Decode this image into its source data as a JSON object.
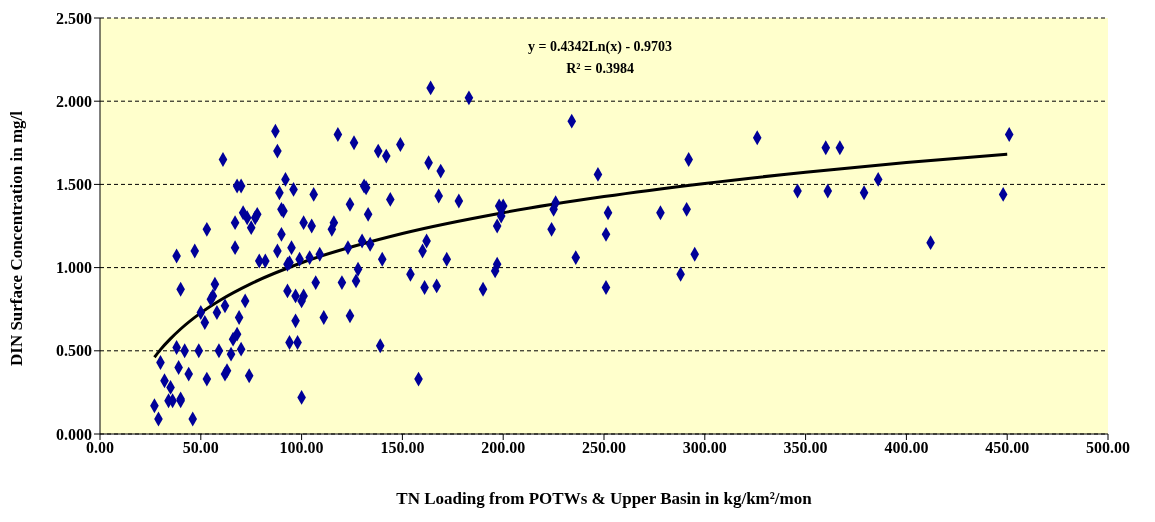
{
  "chart_data": {
    "type": "scatter",
    "xlabel": "TN Loading from POTWs & Upper Basin in kg/km²/mon",
    "ylabel": "DIN Surface Concentration in mg/l",
    "annotations": [
      "y = 0.4342Ln(x) - 0.9703",
      "R² = 0.3984"
    ],
    "xlim": [
      0,
      500
    ],
    "xticks": [
      {
        "value": 0,
        "label": "0.00"
      },
      {
        "value": 50,
        "label": "50.00"
      },
      {
        "value": 100,
        "label": "100.00"
      },
      {
        "value": 150,
        "label": "150.00"
      },
      {
        "value": 200,
        "label": "200.00"
      },
      {
        "value": 250,
        "label": "250.00"
      },
      {
        "value": 300,
        "label": "300.00"
      },
      {
        "value": 350,
        "label": "350.00"
      },
      {
        "value": 400,
        "label": "400.00"
      },
      {
        "value": 450,
        "label": "450.00"
      },
      {
        "value": 500,
        "label": "500.00"
      }
    ],
    "ylim": [
      0,
      2.5
    ],
    "yticks": [
      {
        "value": 0,
        "label": "0.000"
      },
      {
        "value": 0.5,
        "label": "0.500"
      },
      {
        "value": 1,
        "label": "1.000"
      },
      {
        "value": 1.5,
        "label": "1.500"
      },
      {
        "value": 2,
        "label": "2.000"
      },
      {
        "value": 2.5,
        "label": "2.500"
      }
    ],
    "grid": "y",
    "series": [
      {
        "marker": "diamond",
        "color": "#000099",
        "x": [
          27,
          29,
          30,
          32,
          34,
          35,
          36,
          38,
          38,
          39,
          40,
          40,
          40,
          42,
          44,
          46,
          47,
          49,
          50,
          52,
          53,
          53,
          55,
          56,
          57,
          58,
          59,
          61,
          62,
          62,
          63,
          65,
          66,
          67,
          67,
          68,
          68,
          69,
          70,
          70,
          71,
          72,
          73,
          74,
          75,
          77,
          78,
          79,
          82,
          87,
          88,
          88,
          89,
          90,
          90,
          91,
          92,
          93,
          93,
          94,
          94,
          95,
          96,
          97,
          97,
          98,
          99,
          100,
          100,
          101,
          101,
          104,
          105,
          106,
          107,
          109,
          111,
          115,
          116,
          118,
          120,
          123,
          124,
          124,
          126,
          127,
          128,
          130,
          131,
          132,
          133,
          134,
          138,
          139,
          140,
          142,
          144,
          149,
          154,
          158,
          160,
          161,
          162,
          163,
          164,
          167,
          168,
          169,
          172,
          178,
          183,
          190,
          196,
          197,
          197,
          198,
          199,
          200,
          224,
          225,
          226,
          234,
          236,
          247,
          251,
          251,
          252,
          278,
          288,
          291,
          292,
          295,
          326,
          346,
          360,
          361,
          367,
          379,
          386,
          412,
          448,
          451
        ],
        "values": [
          0.17,
          0.09,
          0.43,
          0.32,
          0.2,
          0.28,
          0.2,
          1.07,
          0.52,
          0.4,
          0.2,
          0.21,
          0.87,
          0.5,
          0.36,
          0.09,
          1.1,
          0.5,
          0.73,
          0.67,
          1.23,
          0.33,
          0.81,
          0.83,
          0.9,
          0.73,
          0.5,
          1.65,
          0.77,
          0.36,
          0.38,
          0.48,
          0.57,
          1.27,
          1.12,
          1.49,
          0.6,
          0.7,
          1.49,
          0.51,
          1.33,
          0.8,
          1.3,
          0.35,
          1.24,
          1.3,
          1.32,
          1.04,
          1.04,
          1.82,
          1.7,
          1.1,
          1.45,
          1.35,
          1.2,
          1.34,
          1.53,
          1.02,
          0.86,
          1.03,
          0.55,
          1.12,
          1.47,
          0.68,
          0.83,
          0.55,
          1.05,
          0.22,
          0.8,
          0.83,
          1.27,
          1.06,
          1.25,
          1.44,
          0.91,
          1.08,
          0.7,
          1.23,
          1.27,
          1.8,
          0.91,
          1.12,
          1.38,
          0.71,
          1.75,
          0.92,
          0.99,
          1.16,
          1.49,
          1.48,
          1.32,
          1.14,
          1.7,
          0.53,
          1.05,
          1.67,
          1.41,
          1.74,
          0.96,
          0.33,
          1.1,
          0.88,
          1.16,
          1.63,
          2.08,
          0.89,
          1.43,
          1.58,
          1.05,
          1.4,
          2.02,
          0.87,
          0.98,
          1.02,
          1.25,
          1.37,
          1.31,
          1.37,
          1.23,
          1.35,
          1.39,
          1.88,
          1.06,
          1.56,
          0.88,
          1.2,
          1.33,
          1.33,
          0.96,
          1.35,
          1.65,
          1.08,
          1.78,
          1.46,
          1.72,
          1.46,
          1.72,
          1.45,
          1.53,
          1.15,
          1.44,
          1.8
        ]
      },
      {
        "type": "line",
        "marker": "none",
        "color": "#000000",
        "x": [
          27,
          30,
          35,
          40,
          50,
          60,
          75,
          100,
          150,
          200,
          250,
          300,
          350,
          400,
          450
        ],
        "values": [
          0.461,
          0.507,
          0.573,
          0.631,
          0.728,
          0.807,
          0.904,
          1.029,
          1.205,
          1.33,
          1.427,
          1.506,
          1.573,
          1.631,
          1.682
        ]
      }
    ]
  }
}
